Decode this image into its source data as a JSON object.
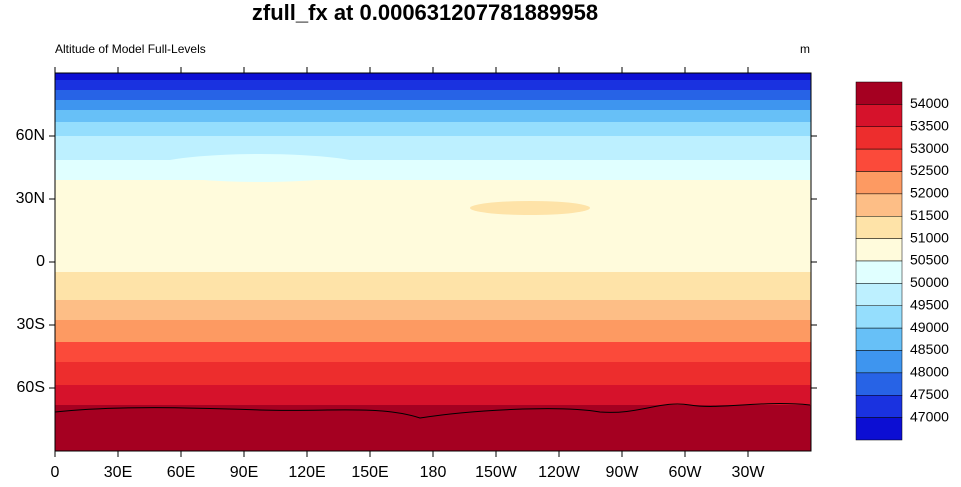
{
  "header": {
    "title": "zfull_fx at 0.000631207781889958",
    "left_string": "Altitude of Model Full-Levels",
    "right_string": "m"
  },
  "map": {
    "lon_labels": [
      "0",
      "30E",
      "60E",
      "90E",
      "120E",
      "150E",
      "180",
      "150W",
      "120W",
      "90W",
      "60W",
      "30W"
    ],
    "lat_labels": [
      "60N",
      "30N",
      "0",
      "30S",
      "60S"
    ]
  },
  "colorbar": {
    "levels": [
      54000,
      53500,
      53000,
      52500,
      52000,
      51500,
      51000,
      50500,
      50000,
      49500,
      49000,
      48500,
      48000,
      47500,
      47000
    ],
    "colors": [
      "#a50021",
      "#d6122b",
      "#ed2d2d",
      "#fb4a3a",
      "#fd9a62",
      "#fdbe86",
      "#fee3a8",
      "#fffbdc",
      "#e0ffff",
      "#bdf0ff",
      "#95defd",
      "#67c0f7",
      "#3e95ef",
      "#2763e6",
      "#1a32e0",
      "#0c0ed3"
    ]
  }
}
